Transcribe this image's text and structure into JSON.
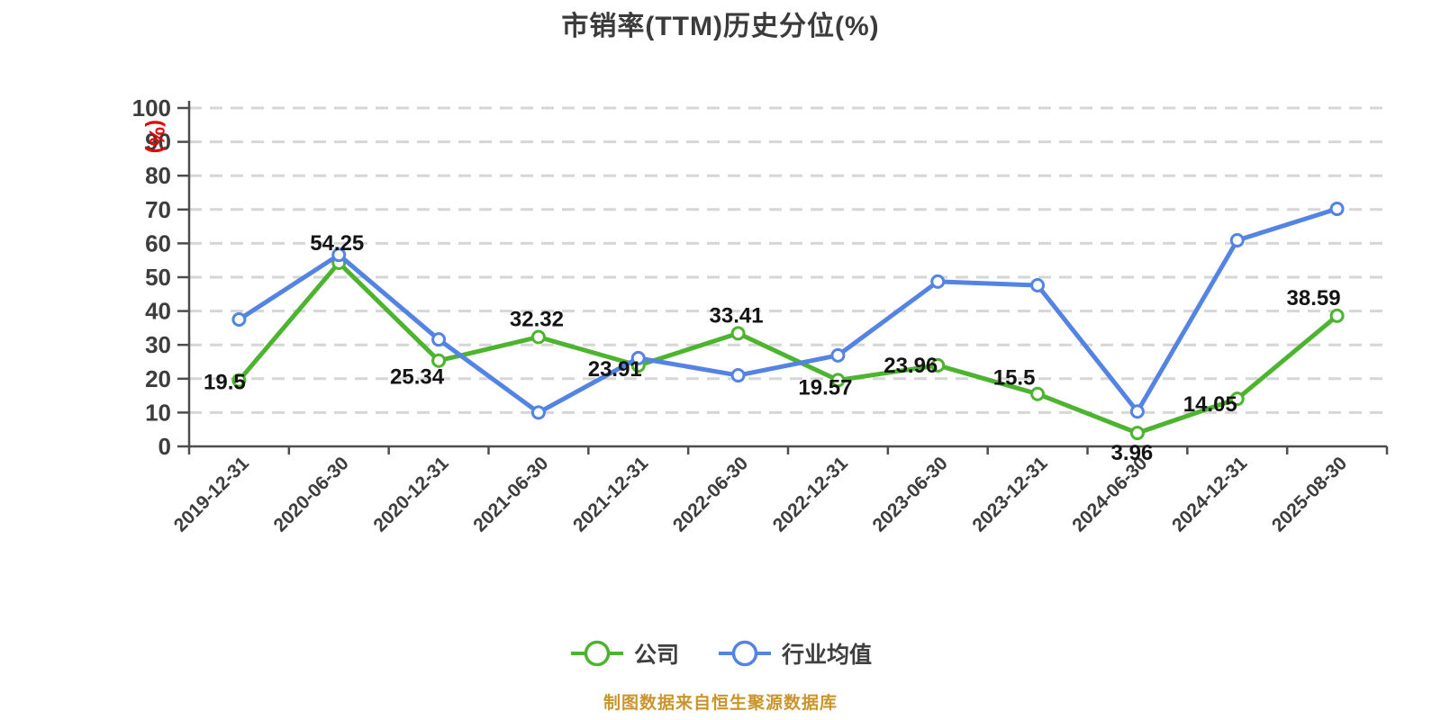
{
  "title": "市销率(TTM)历史分位(%)",
  "source_note": "制图数据来自恒生聚源数据库",
  "y_axis_unit_label": "(%)",
  "colors": {
    "company_line": "#4db42f",
    "industry_line": "#5384e4",
    "axis_line": "#4d4d4d",
    "axis_text": "#3d3d3d",
    "gridline": "#d6d6d6",
    "data_label": "#141414",
    "title_text": "#3b3b3b",
    "unit_label_red": "#e60000",
    "source_text": "#c9952c",
    "marker_fill": "#ffffff"
  },
  "legend": {
    "items": [
      {
        "label": "公司",
        "color": "#4db42f"
      },
      {
        "label": "行业均值",
        "color": "#5384e4"
      }
    ]
  },
  "chart_data": {
    "type": "line",
    "title": "市销率(TTM)历史分位(%)",
    "ylabel": "(%)",
    "ylim": [
      0,
      100
    ],
    "y_ticks": [
      0,
      10,
      20,
      30,
      40,
      50,
      60,
      70,
      80,
      90,
      100
    ],
    "grid": "horizontal dashed",
    "legend_position": "bottom",
    "categories": [
      "2019-12-31",
      "2020-06-30",
      "2020-12-31",
      "2021-06-30",
      "2021-12-31",
      "2022-06-30",
      "2022-12-31",
      "2023-06-30",
      "2023-12-31",
      "2024-06-30",
      "2024-12-31",
      "2025-08-30"
    ],
    "series": [
      {
        "name": "公司",
        "color": "#4db42f",
        "values": [
          19.5,
          54.25,
          25.34,
          32.32,
          23.91,
          33.41,
          19.57,
          23.96,
          15.5,
          3.96,
          14.05,
          38.59
        ],
        "show_labels": true,
        "label_offsets": [
          [
            -16,
            10
          ],
          [
            -2,
            -14
          ],
          [
            -24,
            26
          ],
          [
            -2,
            -12
          ],
          [
            -26,
            12
          ],
          [
            -2,
            -12
          ],
          [
            -14,
            16
          ],
          [
            -30,
            8
          ],
          [
            -26,
            -10
          ],
          [
            -6,
            30
          ],
          [
            -30,
            14
          ],
          [
            -26,
            -12
          ]
        ]
      },
      {
        "name": "行业均值",
        "color": "#5384e4",
        "values": [
          37.5,
          56.6,
          31.6,
          10.0,
          26.1,
          21.0,
          26.9,
          48.7,
          47.6,
          10.3,
          60.9,
          70.2
        ],
        "show_labels": false
      }
    ]
  }
}
